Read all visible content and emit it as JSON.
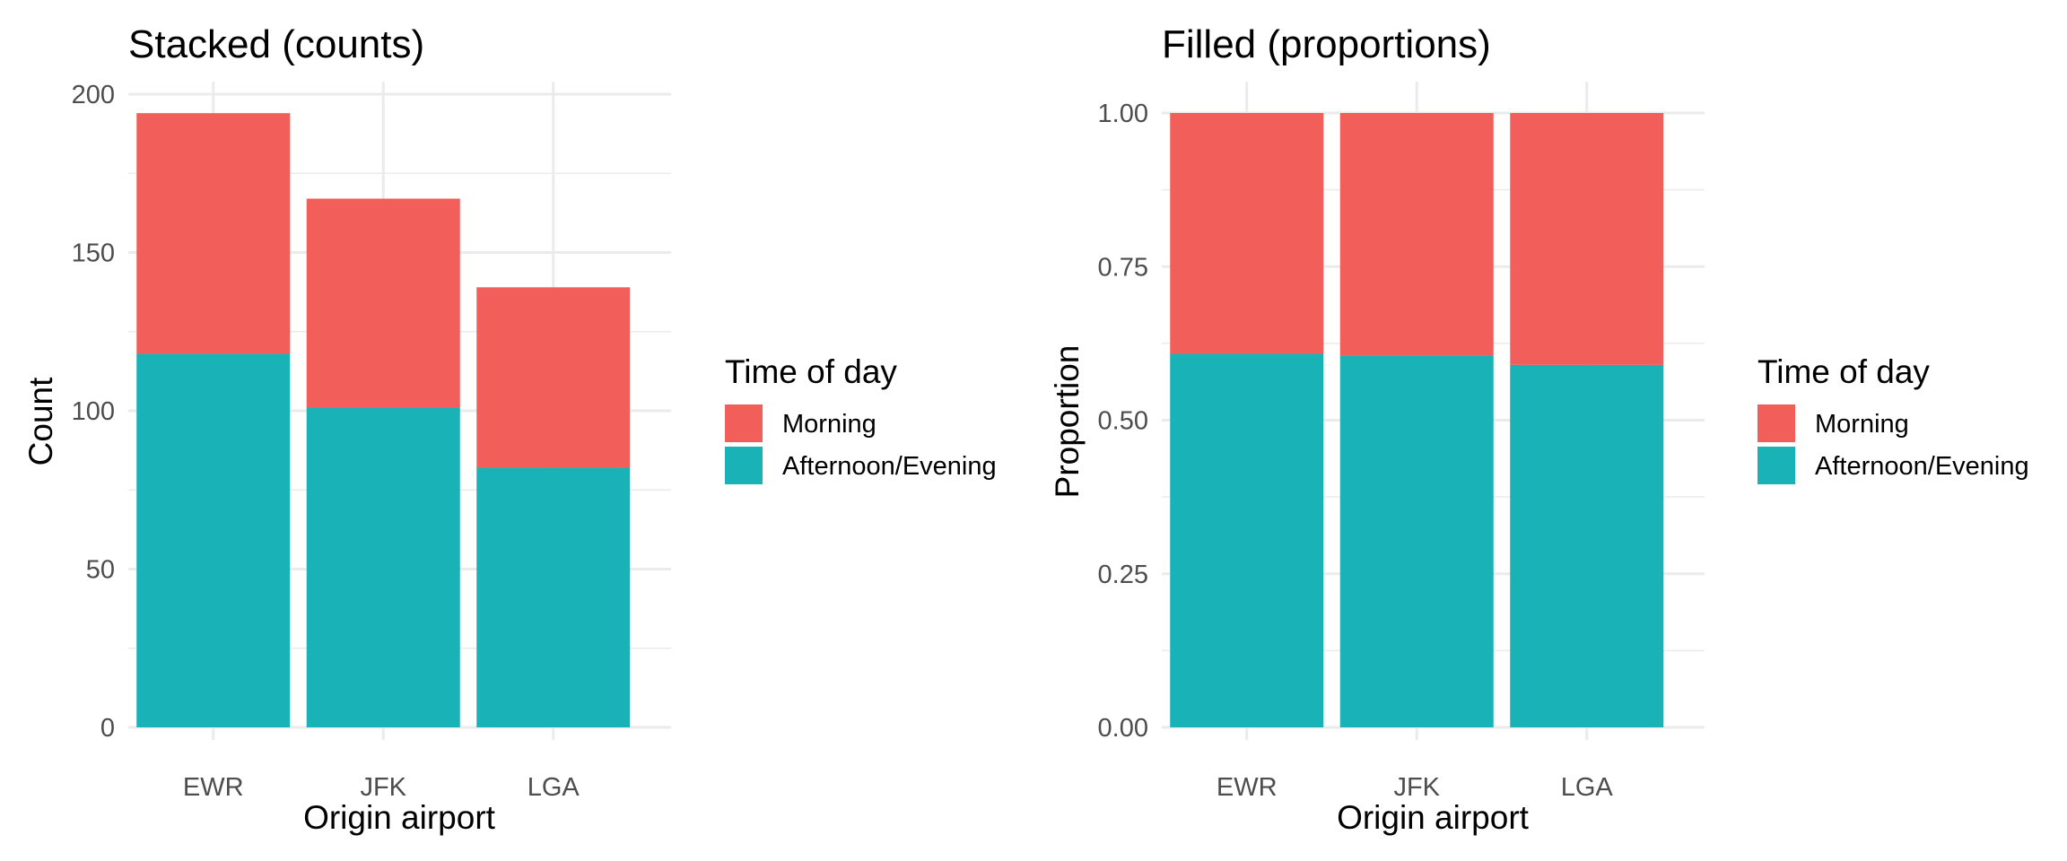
{
  "chart_data": [
    {
      "type": "bar",
      "stacking": "stacked",
      "title": "Stacked (counts)",
      "xlabel": "Origin airport",
      "ylabel": "Count",
      "categories": [
        "EWR",
        "JFK",
        "LGA"
      ],
      "series": [
        {
          "name": "Afternoon/Evening",
          "values": [
            118,
            101,
            82
          ],
          "color": "#19B2B6"
        },
        {
          "name": "Morning",
          "values": [
            76,
            66,
            57
          ],
          "color": "#F25E5A"
        }
      ],
      "ylim": [
        0,
        200
      ],
      "yticks": [
        0,
        50,
        100,
        150,
        200
      ],
      "ytick_labels": [
        "0",
        "50",
        "100",
        "150",
        "200"
      ],
      "grid": true,
      "legend": {
        "title": "Time of day",
        "placement": "right",
        "entries": [
          "Morning",
          "Afternoon/Evening"
        ]
      }
    },
    {
      "type": "bar",
      "stacking": "filled",
      "title": "Filled (proportions)",
      "xlabel": "Origin airport",
      "ylabel": "Proportion",
      "categories": [
        "EWR",
        "JFK",
        "LGA"
      ],
      "series": [
        {
          "name": "Afternoon/Evening",
          "values": [
            0.608,
            0.605,
            0.59
          ],
          "color": "#19B2B6"
        },
        {
          "name": "Morning",
          "values": [
            0.392,
            0.395,
            0.41
          ],
          "color": "#F25E5A"
        }
      ],
      "ylim": [
        0,
        1
      ],
      "yticks": [
        0,
        0.25,
        0.5,
        0.75,
        1
      ],
      "ytick_labels": [
        "0.00",
        "0.25",
        "0.50",
        "0.75",
        "1.00"
      ],
      "grid": true,
      "legend": {
        "title": "Time of day",
        "placement": "right",
        "entries": [
          "Morning",
          "Afternoon/Evening"
        ]
      }
    }
  ]
}
